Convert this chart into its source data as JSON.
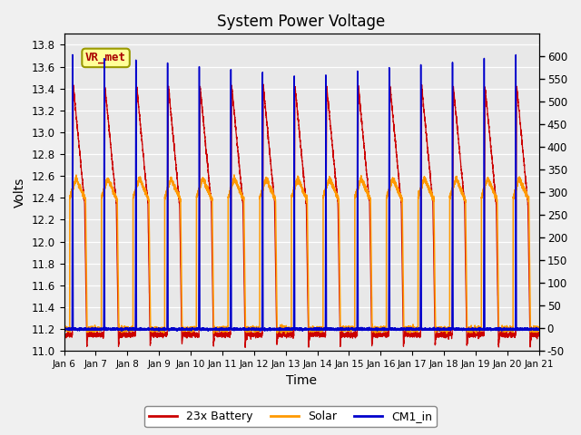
{
  "title": "System Power Voltage",
  "xlabel": "Time",
  "ylabel": "Volts",
  "ylim_left": [
    11.0,
    13.9
  ],
  "ylim_right": [
    -50,
    650
  ],
  "yticks_left": [
    11.0,
    11.2,
    11.4,
    11.6,
    11.8,
    12.0,
    12.2,
    12.4,
    12.6,
    12.8,
    13.0,
    13.2,
    13.4,
    13.6,
    13.8
  ],
  "yticks_right": [
    -50,
    0,
    50,
    100,
    150,
    200,
    250,
    300,
    350,
    400,
    450,
    500,
    550,
    600
  ],
  "x_labels": [
    "Jan 6",
    "Jan 7",
    "Jan 8",
    "Jan 9",
    "Jan 10",
    "Jan 11",
    "Jan 12",
    "Jan 13",
    "Jan 14",
    "Jan 15",
    "Jan 16",
    "Jan 17",
    "Jan 18",
    "Jan 19",
    "Jan 20",
    "Jan 21"
  ],
  "num_days": 15,
  "annotation_text": "VR_met",
  "colors": {
    "battery": "#cc0000",
    "solar": "#ff9900",
    "cm1": "#0000cc",
    "background": "#e8e8e8",
    "grid_bg": "#d8d8d8",
    "fig_bg": "#f0f0f0"
  },
  "legend": [
    "23x Battery",
    "Solar",
    "CM1_in"
  ]
}
